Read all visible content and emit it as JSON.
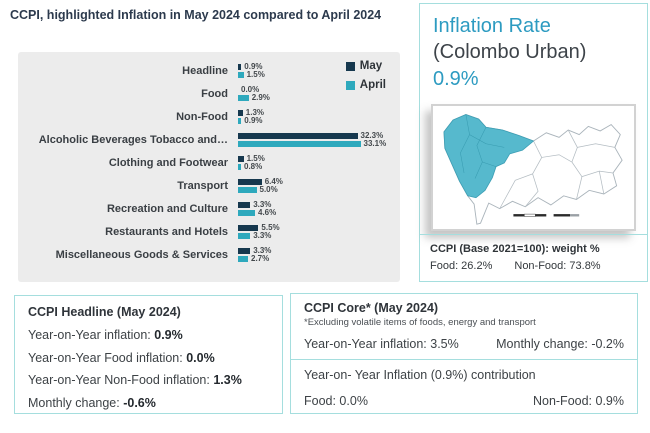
{
  "page": {
    "title": "CCPI, highlighted Inflation in May 2024 compared to April 2024"
  },
  "chart_data": {
    "type": "bar",
    "orientation": "horizontal",
    "unit": "%",
    "categories": [
      "Headline",
      "Food",
      "Non-Food",
      "Alcoholic Beverages Tobacco and…",
      "Clothing and Footwear",
      "Transport",
      "Recreation and Culture",
      "Restaurants and Hotels",
      "Miscellaneous Goods & Services"
    ],
    "series": [
      {
        "name": "May",
        "color": "#16384e",
        "values": [
          0.9,
          0.0,
          1.3,
          32.3,
          1.5,
          6.4,
          3.3,
          5.5,
          3.3
        ]
      },
      {
        "name": "April",
        "color": "#2ea9bd",
        "values": [
          1.5,
          2.9,
          0.9,
          33.1,
          0.8,
          5.0,
          4.6,
          3.3,
          2.7
        ]
      }
    ],
    "xlim": [
      0,
      35
    ],
    "grid": false,
    "legend_position": "top-right",
    "value_labels": true
  },
  "inflation_panel": {
    "title_line1": "Inflation Rate",
    "title_line2": "(Colombo Urban)",
    "rate": "0.9%",
    "weights_heading": "CCPI (Base 2021=100): weight %",
    "weights_food": "Food: 26.2%",
    "weights_nonfood": "Non-Food: 73.8%"
  },
  "headline_box": {
    "title": "CCPI Headline (May 2024)",
    "rows": [
      {
        "label": "Year-on-Year inflation: ",
        "value": "0.9%"
      },
      {
        "label": "Year-on-Year Food inflation: ",
        "value": "0.0%"
      },
      {
        "label": "Year-on-Year Non-Food inflation: ",
        "value": "1.3%"
      },
      {
        "label": "Monthly change: ",
        "value": "-0.6%"
      }
    ]
  },
  "core_box": {
    "title": "CCPI Core* (May 2024)",
    "footnote": "*Excluding volatile items of foods, energy and transport",
    "yoy": "Year-on-Year inflation: 3.5%",
    "monthly": "Monthly change:  -0.2%",
    "contribution_title": "Year-on- Year Inflation (0.9%) contribution",
    "contribution_food": "Food: 0.0%",
    "contribution_nonfood": "Non-Food: 0.9%"
  },
  "colors": {
    "may_series": "#16384e",
    "april_series": "#2ea9bd",
    "accent_teal": "#2d9bc1",
    "panel_border": "#a5dede",
    "chart_background": "#ececec",
    "map_highlight": "#56b9cd",
    "title_text": "#2c3a4d"
  }
}
